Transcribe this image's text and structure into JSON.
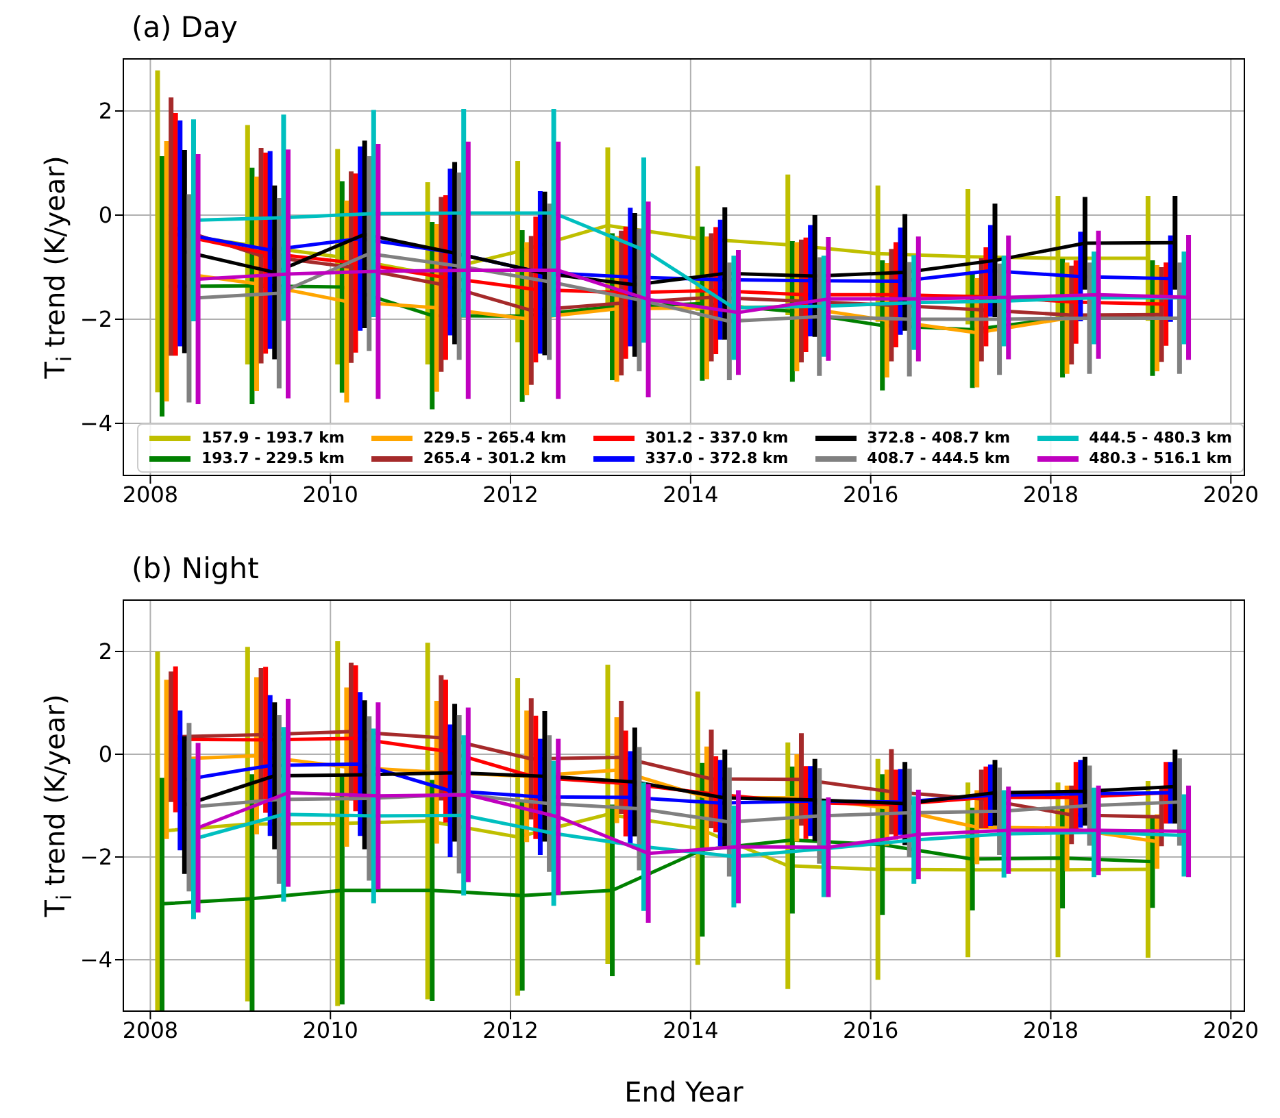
{
  "chart_data": [
    {
      "type": "line",
      "title": "(a) Day",
      "ylabel": "T$_{i}$ trend (K/year)",
      "xlim": [
        2007.7,
        2020.15
      ],
      "xticks": [
        2008,
        2010,
        2012,
        2014,
        2016,
        2018,
        2020
      ],
      "ylim": [
        -5,
        3
      ],
      "yticks": [
        -4,
        -2,
        0,
        2
      ],
      "grid": true,
      "legend": "bottom",
      "series": [
        {
          "name": "157.9 - 193.7 km",
          "color": "#bfbf00",
          "x": [
            2008.08,
            2009.08,
            2010.08,
            2011.08,
            2012.08,
            2013.08,
            2014.08,
            2015.08,
            2016.08,
            2017.08,
            2018.08,
            2019.08
          ],
          "values": [
            -0.31,
            -0.57,
            -0.8,
            -1.12,
            -0.7,
            -0.2,
            -0.45,
            -0.57,
            -0.74,
            -0.8,
            -0.83,
            -0.83
          ],
          "errors": [
            3.09,
            2.3,
            2.07,
            1.75,
            1.74,
            1.5,
            1.39,
            1.35,
            1.31,
            1.3,
            1.2,
            1.2
          ]
        },
        {
          "name": "193.7 - 229.5 km",
          "color": "#008000",
          "x": [
            2008.13,
            2009.13,
            2010.13,
            2011.13,
            2012.13,
            2013.13,
            2014.13,
            2015.13,
            2016.13,
            2017.13,
            2018.13,
            2019.13
          ],
          "values": [
            -1.37,
            -1.36,
            -1.38,
            -1.93,
            -1.94,
            -1.76,
            -1.7,
            -1.85,
            -2.12,
            -2.2,
            -1.98,
            -1.98
          ],
          "errors": [
            2.5,
            2.27,
            2.03,
            1.8,
            1.65,
            1.41,
            1.48,
            1.35,
            1.25,
            1.12,
            1.14,
            1.11
          ]
        },
        {
          "name": "229.5 - 265.4 km",
          "color": "#ffa500",
          "x": [
            2008.18,
            2009.18,
            2010.18,
            2011.18,
            2012.18,
            2013.18,
            2014.18,
            2015.18,
            2016.18,
            2017.18,
            2018.18,
            2019.18
          ],
          "values": [
            -1.08,
            -1.32,
            -1.66,
            -1.78,
            -1.99,
            -1.8,
            -1.78,
            -1.76,
            -2.02,
            -2.26,
            -1.98,
            -1.98
          ],
          "errors": [
            2.5,
            2.06,
            1.94,
            1.61,
            1.47,
            1.4,
            1.37,
            1.24,
            1.1,
            1.05,
            1.07,
            1.02
          ]
        },
        {
          "name": "265.4 - 301.2 km",
          "color": "#a52a2a",
          "x": [
            2008.23,
            2009.23,
            2010.23,
            2011.23,
            2012.23,
            2013.23,
            2014.23,
            2015.23,
            2016.23,
            2017.23,
            2018.23,
            2019.23
          ],
          "values": [
            -0.22,
            -0.78,
            -1.0,
            -1.33,
            -1.83,
            -1.69,
            -1.58,
            -1.65,
            -1.73,
            -1.82,
            -1.92,
            -1.91
          ],
          "errors": [
            2.48,
            2.07,
            1.84,
            1.68,
            1.43,
            1.39,
            1.23,
            1.18,
            1.08,
            0.99,
            0.95,
            0.91
          ]
        },
        {
          "name": "301.2 - 337.0 km",
          "color": "#ff0000",
          "x": [
            2008.28,
            2009.28,
            2010.28,
            2011.28,
            2012.28,
            2013.28,
            2014.28,
            2015.28,
            2016.28,
            2017.28,
            2018.28,
            2019.28
          ],
          "values": [
            -0.37,
            -0.73,
            -0.92,
            -1.2,
            -1.43,
            -1.49,
            -1.45,
            -1.53,
            -1.53,
            -1.57,
            -1.67,
            -1.71
          ],
          "errors": [
            2.33,
            1.93,
            1.72,
            1.58,
            1.4,
            1.27,
            1.22,
            1.1,
            1.01,
            0.95,
            0.8,
            0.8
          ]
        },
        {
          "name": "337.0 - 372.8 km",
          "color": "#0000ff",
          "x": [
            2008.33,
            2009.33,
            2010.33,
            2011.33,
            2012.33,
            2013.33,
            2014.33,
            2015.33,
            2016.33,
            2017.33,
            2018.33,
            2019.33
          ],
          "values": [
            -0.35,
            -0.67,
            -0.45,
            -0.71,
            -1.1,
            -1.19,
            -1.24,
            -1.26,
            -1.27,
            -1.07,
            -1.18,
            -1.22
          ],
          "errors": [
            2.17,
            1.9,
            1.77,
            1.6,
            1.56,
            1.33,
            1.15,
            1.07,
            1.03,
            0.88,
            0.86,
            0.83
          ]
        },
        {
          "name": "372.8 - 408.7 km",
          "color": "#000000",
          "x": [
            2008.38,
            2009.38,
            2010.38,
            2011.38,
            2012.38,
            2013.38,
            2014.38,
            2015.38,
            2016.38,
            2017.38,
            2018.38,
            2019.38
          ],
          "values": [
            -0.7,
            -1.1,
            -0.37,
            -0.73,
            -1.12,
            -1.34,
            -1.12,
            -1.17,
            -1.1,
            -0.87,
            -0.54,
            -0.53
          ],
          "errors": [
            1.95,
            1.67,
            1.8,
            1.75,
            1.57,
            1.38,
            1.27,
            1.17,
            1.12,
            1.09,
            0.89,
            0.9
          ]
        },
        {
          "name": "408.7 - 444.5 km",
          "color": "#808080",
          "x": [
            2008.43,
            2009.43,
            2010.43,
            2011.43,
            2012.43,
            2013.43,
            2014.43,
            2015.43,
            2016.43,
            2017.43,
            2018.43,
            2019.43
          ],
          "values": [
            -1.6,
            -1.5,
            -0.74,
            -0.98,
            -1.28,
            -1.63,
            -2.04,
            -1.95,
            -2.0,
            -2.0,
            -1.98,
            -1.98
          ],
          "errors": [
            2.0,
            1.83,
            1.87,
            1.8,
            1.5,
            1.37,
            1.13,
            1.14,
            1.1,
            1.07,
            1.07,
            1.07
          ]
        },
        {
          "name": "444.5 - 480.3 km",
          "color": "#00bfbf",
          "x": [
            2008.48,
            2009.48,
            2010.48,
            2011.48,
            2012.48,
            2013.48,
            2014.48,
            2015.48,
            2016.48,
            2017.48,
            2018.48,
            2019.48
          ],
          "values": [
            -0.1,
            -0.05,
            0.03,
            0.04,
            0.04,
            -0.67,
            -1.78,
            -1.75,
            -1.68,
            -1.65,
            -1.59,
            -1.59
          ],
          "errors": [
            1.94,
            1.98,
            1.99,
            2.0,
            2.0,
            1.78,
            1.0,
            0.97,
            0.91,
            0.87,
            0.89,
            0.89
          ]
        },
        {
          "name": "480.3 - 516.1 km",
          "color": "#bf00bf",
          "x": [
            2008.53,
            2009.53,
            2010.53,
            2011.53,
            2012.53,
            2013.53,
            2014.53,
            2015.53,
            2016.53,
            2017.53,
            2018.53,
            2019.53
          ],
          "values": [
            -1.23,
            -1.13,
            -1.08,
            -1.06,
            -1.06,
            -1.62,
            -1.87,
            -1.61,
            -1.61,
            -1.58,
            -1.53,
            -1.58
          ],
          "errors": [
            2.4,
            2.39,
            2.45,
            2.47,
            2.47,
            1.88,
            1.2,
            1.19,
            1.2,
            1.19,
            1.23,
            1.2
          ]
        }
      ]
    },
    {
      "type": "line",
      "title": "(b) Night",
      "xlabel": "End Year",
      "ylabel": "T$_{i}$ trend (K/year)",
      "xlim": [
        2007.7,
        2020.15
      ],
      "xticks": [
        2008,
        2010,
        2012,
        2014,
        2016,
        2018,
        2020
      ],
      "ylim": [
        -5,
        3
      ],
      "yticks": [
        -4,
        -2,
        0,
        2
      ],
      "grid": true,
      "series": [
        {
          "color": "#bfbf00",
          "x": [
            2008.08,
            2009.08,
            2010.08,
            2011.08,
            2012.08,
            2013.08,
            2014.08,
            2015.08,
            2016.08,
            2017.08,
            2018.08,
            2019.08
          ],
          "values": [
            -1.5,
            -1.36,
            -1.35,
            -1.3,
            -1.61,
            -1.17,
            -1.44,
            -2.17,
            -2.24,
            -2.25,
            -2.25,
            -2.24
          ],
          "errors": [
            3.5,
            3.45,
            3.55,
            3.47,
            3.09,
            2.91,
            2.66,
            2.4,
            2.15,
            1.7,
            1.7,
            1.72
          ]
        },
        {
          "color": "#008000",
          "x": [
            2008.13,
            2009.13,
            2010.13,
            2011.13,
            2012.13,
            2013.13,
            2014.13,
            2015.13,
            2016.13,
            2017.13,
            2018.13,
            2019.13
          ],
          "values": [
            -2.91,
            -2.81,
            -2.65,
            -2.65,
            -2.75,
            -2.65,
            -1.86,
            -1.67,
            -1.76,
            -2.04,
            -2.02,
            -2.09
          ],
          "errors": [
            [
              -5,
              -0.46
            ],
            [
              -5,
              -0.39
            ],
            2.22,
            2.15,
            1.85,
            1.67,
            1.69,
            1.43,
            1.37,
            1.0,
            0.98,
            0.9
          ]
        },
        {
          "color": "#ffa500",
          "x": [
            2008.18,
            2009.18,
            2010.18,
            2011.18,
            2012.18,
            2013.18,
            2014.18,
            2015.18,
            2016.18,
            2017.18,
            2018.18,
            2019.18
          ],
          "values": [
            -0.1,
            -0.03,
            -0.25,
            -0.35,
            -0.43,
            -0.31,
            -0.84,
            -0.85,
            -1.04,
            -1.42,
            -1.44,
            -1.7
          ],
          "errors": [
            1.55,
            1.53,
            1.55,
            1.39,
            1.28,
            1.03,
            0.99,
            0.85,
            0.74,
            0.72,
            0.83,
            0.53
          ]
        },
        {
          "color": "#a52a2a",
          "x": [
            2008.23,
            2009.23,
            2010.23,
            2011.23,
            2012.23,
            2013.23,
            2014.23,
            2015.23,
            2016.23,
            2017.23,
            2018.23,
            2019.23
          ],
          "values": [
            0.34,
            0.38,
            0.44,
            0.32,
            -0.09,
            -0.06,
            -0.48,
            -0.49,
            -0.73,
            -0.87,
            -1.18,
            -1.22
          ],
          "errors": [
            1.27,
            1.3,
            1.34,
            1.22,
            1.18,
            1.1,
            0.96,
            0.9,
            0.83,
            0.57,
            0.57,
            0.57
          ]
        },
        {
          "color": "#ff0000",
          "x": [
            2008.28,
            2009.28,
            2010.28,
            2011.28,
            2012.28,
            2013.28,
            2014.28,
            2015.28,
            2016.28,
            2017.28,
            2018.28,
            2019.28
          ],
          "values": [
            0.29,
            0.28,
            0.31,
            0.06,
            -0.45,
            -0.57,
            -0.78,
            -0.94,
            -0.98,
            -0.84,
            -0.84,
            -0.75
          ],
          "errors": [
            1.42,
            1.42,
            1.42,
            1.39,
            1.2,
            1.03,
            0.74,
            0.71,
            0.68,
            0.6,
            0.69,
            0.6
          ]
        },
        {
          "color": "#0000ff",
          "x": [
            2008.33,
            2009.33,
            2010.33,
            2011.33,
            2012.33,
            2013.33,
            2014.33,
            2015.33,
            2016.33,
            2017.33,
            2018.33,
            2019.33
          ],
          "values": [
            -0.51,
            -0.22,
            -0.19,
            -0.71,
            -0.83,
            -0.84,
            -0.95,
            -0.91,
            -0.93,
            -0.8,
            -0.77,
            -0.75
          ],
          "errors": [
            1.36,
            1.37,
            1.4,
            1.29,
            1.13,
            0.9,
            0.84,
            0.68,
            0.64,
            0.6,
            0.66,
            0.6
          ]
        },
        {
          "color": "#000000",
          "x": [
            2008.38,
            2009.38,
            2010.38,
            2011.38,
            2012.38,
            2013.38,
            2014.38,
            2015.38,
            2016.38,
            2017.38,
            2018.38,
            2019.38
          ],
          "values": [
            -0.99,
            -0.42,
            -0.4,
            -0.36,
            -0.43,
            -0.54,
            -0.85,
            -0.89,
            -0.96,
            -0.75,
            -0.72,
            -0.63
          ],
          "errors": [
            1.34,
            1.43,
            1.45,
            1.34,
            1.27,
            1.06,
            0.94,
            0.8,
            0.81,
            0.64,
            0.67,
            0.72
          ]
        },
        {
          "color": "#808080",
          "x": [
            2008.43,
            2009.43,
            2010.43,
            2011.43,
            2012.43,
            2013.43,
            2014.43,
            2015.43,
            2016.43,
            2017.43,
            2018.43,
            2019.43
          ],
          "values": [
            -1.03,
            -0.88,
            -0.86,
            -0.78,
            -0.96,
            -1.06,
            -1.32,
            -1.2,
            -1.14,
            -1.11,
            -1.0,
            -0.93
          ],
          "errors": [
            1.64,
            1.64,
            1.6,
            1.54,
            1.33,
            1.2,
            1.06,
            0.93,
            0.86,
            0.85,
            0.78,
            0.85
          ]
        },
        {
          "color": "#00bfbf",
          "x": [
            2008.48,
            2009.48,
            2010.48,
            2011.48,
            2012.48,
            2013.48,
            2014.48,
            2015.48,
            2016.48,
            2017.48,
            2018.48,
            2019.48
          ],
          "values": [
            -1.65,
            -1.17,
            -1.2,
            -1.19,
            -1.54,
            -1.8,
            -1.99,
            -1.84,
            -1.67,
            -1.55,
            -1.52,
            -1.58
          ],
          "errors": [
            1.56,
            1.7,
            1.7,
            1.56,
            1.41,
            1.25,
            0.99,
            0.94,
            0.85,
            0.85,
            0.87,
            0.8
          ]
        },
        {
          "color": "#bf00bf",
          "x": [
            2008.53,
            2009.53,
            2010.53,
            2011.53,
            2012.53,
            2013.53,
            2014.53,
            2015.53,
            2016.53,
            2017.53,
            2018.53,
            2019.53
          ],
          "values": [
            -1.43,
            -0.75,
            -0.81,
            -0.79,
            -1.22,
            -1.93,
            -1.8,
            -1.81,
            -1.56,
            -1.48,
            -1.48,
            -1.5
          ],
          "errors": [
            1.65,
            1.83,
            1.82,
            1.7,
            1.52,
            1.35,
            1.1,
            0.97,
            0.87,
            0.85,
            0.87,
            0.89
          ]
        }
      ]
    }
  ]
}
